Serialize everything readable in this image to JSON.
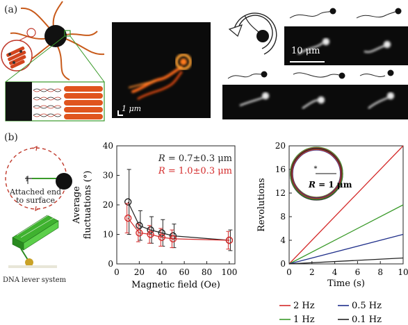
{
  "panel_a_label": "(a)",
  "panel_b_label": "(b)",
  "scalebar_1um": "1 μm",
  "scalebar_10um": "10 μm",
  "diagram_label_attached": "Attached end",
  "diagram_label_surface": "to surface",
  "diagram_label_one": "1",
  "dna_lever_caption": "DNA lever system",
  "colors": {
    "black": "#222222",
    "red": "#d42a2a",
    "green": "#3a9a2a",
    "blue": "#1f2f8a",
    "orange": "#f07020"
  },
  "chart_data": [
    {
      "type": "line",
      "xlabel": "Magnetic field (Oe)",
      "ylabel": "Average fluctuations (°)",
      "xlim": [
        0,
        105
      ],
      "ylim": [
        0,
        40
      ],
      "xticks": [
        0,
        20,
        40,
        60,
        80,
        100
      ],
      "yticks": [
        0,
        10,
        20,
        30,
        40
      ],
      "legend": [
        "R = 0.7±0.3 μm",
        "R = 1.0±0.3 μm"
      ],
      "series": [
        {
          "name": "R = 0.7±0.3 μm",
          "color": "#222222",
          "x": [
            10,
            20,
            30,
            40,
            50,
            100
          ],
          "y": [
            21,
            13,
            11.5,
            10.5,
            9.5,
            8
          ],
          "err": [
            11,
            5,
            4.5,
            4.5,
            4,
            3.5
          ]
        },
        {
          "name": "R = 1.0±0.3 μm",
          "color": "#d42a2a",
          "x": [
            10,
            20,
            30,
            40,
            50,
            100
          ],
          "y": [
            15.5,
            10.5,
            10,
            9,
            8.5,
            8
          ],
          "err": [
            5,
            3,
            3,
            3,
            3,
            3
          ]
        }
      ]
    },
    {
      "type": "line",
      "xlabel": "Time (s)",
      "ylabel": "Revolutions",
      "xlim": [
        0,
        10
      ],
      "ylim": [
        0,
        20
      ],
      "xticks": [
        0,
        2,
        4,
        6,
        8,
        10
      ],
      "yticks": [
        0,
        4,
        8,
        12,
        16,
        20
      ],
      "inset_label": "R = 1 μm",
      "legend": [
        "2 Hz",
        "0.5 Hz",
        "1 Hz",
        "0.1 Hz"
      ],
      "series": [
        {
          "name": "2 Hz",
          "color": "#d42a2a",
          "x": [
            0,
            10
          ],
          "y": [
            0,
            20
          ]
        },
        {
          "name": "1 Hz",
          "color": "#3a9a2a",
          "x": [
            0,
            10
          ],
          "y": [
            0,
            10
          ]
        },
        {
          "name": "0.5 Hz",
          "color": "#1f2f8a",
          "x": [
            0,
            10
          ],
          "y": [
            0,
            5
          ]
        },
        {
          "name": "0.1 Hz",
          "color": "#222222",
          "x": [
            0,
            10
          ],
          "y": [
            0,
            1
          ]
        }
      ]
    }
  ]
}
